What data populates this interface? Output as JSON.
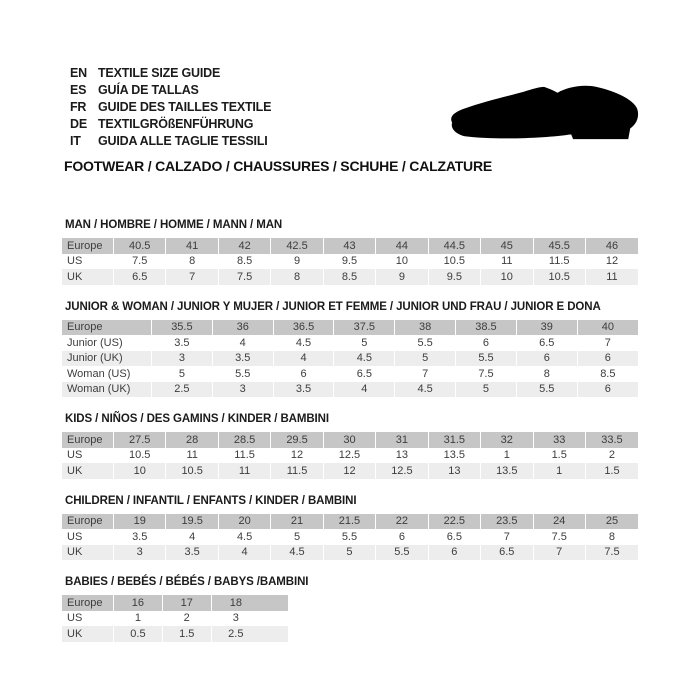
{
  "header": {
    "languages": [
      {
        "code": "EN",
        "title": "TEXTILE SIZE GUIDE"
      },
      {
        "code": "ES",
        "title": "GUÍA DE TALLAS"
      },
      {
        "code": "FR",
        "title": "GUIDE DES TAILLES TEXTILE"
      },
      {
        "code": "DE",
        "title": "TEXTILGRÖßENFÜHRUNG"
      },
      {
        "code": "IT",
        "title": "GUIDA ALLE TAGLIE TESSILI"
      }
    ],
    "category_title": "FOOTWEAR / CALZADO / CHAUSSURES / SCHUHE / CALZATURE"
  },
  "icons": {
    "shoe": "dress-shoe-silhouette"
  },
  "colors": {
    "header_row": "#c6c6c6",
    "alt_row": "#ededed",
    "row": "#ffffff",
    "text": "#3d3d3d",
    "title_text": "#1b1b1b",
    "shoe": "#000000"
  },
  "tables": [
    {
      "title": "MAN / HOMBRE / HOMME / MANN / MAN",
      "rows": [
        {
          "label": "Europe",
          "values": [
            "40.5",
            "41",
            "42",
            "42.5",
            "43",
            "44",
            "44.5",
            "45",
            "45.5",
            "46"
          ]
        },
        {
          "label": "US",
          "values": [
            "7.5",
            "8",
            "8.5",
            "9",
            "9.5",
            "10",
            "10.5",
            "11",
            "11.5",
            "12"
          ]
        },
        {
          "label": "UK",
          "values": [
            "6.5",
            "7",
            "7.5",
            "8",
            "8.5",
            "9",
            "9.5",
            "10",
            "10.5",
            "11"
          ]
        }
      ]
    },
    {
      "title": "JUNIOR & WOMAN / JUNIOR Y MUJER / JUNIOR ET FEMME / JUNIOR UND FRAU / JUNIOR E DONA",
      "rows": [
        {
          "label": "Europe",
          "values": [
            "35.5",
            "36",
            "36.5",
            "37.5",
            "38",
            "38.5",
            "39",
            "40"
          ]
        },
        {
          "label": "Junior (US)",
          "values": [
            "3.5",
            "4",
            "4.5",
            "5",
            "5.5",
            "6",
            "6.5",
            "7"
          ]
        },
        {
          "label": "Junior (UK)",
          "values": [
            "3",
            "3.5",
            "4",
            "4.5",
            "5",
            "5.5",
            "6",
            "6"
          ]
        },
        {
          "label": "Woman (US)",
          "values": [
            "5",
            "5.5",
            "6",
            "6.5",
            "7",
            "7.5",
            "8",
            "8.5"
          ]
        },
        {
          "label": "Woman (UK)",
          "values": [
            "2.5",
            "3",
            "3.5",
            "4",
            "4.5",
            "5",
            "5.5",
            "6"
          ]
        }
      ]
    },
    {
      "title": "KIDS / NIÑOS / DES GAMINS / KINDER / BAMBINI",
      "rows": [
        {
          "label": "Europe",
          "values": [
            "27.5",
            "28",
            "28.5",
            "29.5",
            "30",
            "31",
            "31.5",
            "32",
            "33",
            "33.5"
          ]
        },
        {
          "label": "US",
          "values": [
            "10.5",
            "11",
            "11.5",
            "12",
            "12.5",
            "13",
            "13.5",
            "1",
            "1.5",
            "2"
          ]
        },
        {
          "label": "UK",
          "values": [
            "10",
            "10.5",
            "11",
            "11.5",
            "12",
            "12.5",
            "13",
            "13.5",
            "1",
            "1.5"
          ]
        }
      ]
    },
    {
      "title": "CHILDREN / INFANTIL / ENFANTS / KINDER / BAMBINI",
      "rows": [
        {
          "label": "Europe",
          "values": [
            "19",
            "19.5",
            "20",
            "21",
            "21.5",
            "22",
            "22.5",
            "23.5",
            "24",
            "25"
          ]
        },
        {
          "label": "US",
          "values": [
            "3.5",
            "4",
            "4.5",
            "5",
            "5.5",
            "6",
            "6.5",
            "7",
            "7.5",
            "8"
          ]
        },
        {
          "label": "UK",
          "values": [
            "3",
            "3.5",
            "4",
            "4.5",
            "5",
            "5.5",
            "6",
            "6.5",
            "7",
            "7.5"
          ]
        }
      ]
    },
    {
      "title": "BABIES / BEBÉS / BÉBÉS / BABYS /BAMBINI",
      "rows": [
        {
          "label": "Europe",
          "values": [
            "16",
            "17",
            "18"
          ]
        },
        {
          "label": "US",
          "values": [
            "1",
            "2",
            "3"
          ]
        },
        {
          "label": "UK",
          "values": [
            "0.5",
            "1.5",
            "2.5"
          ]
        }
      ]
    }
  ]
}
